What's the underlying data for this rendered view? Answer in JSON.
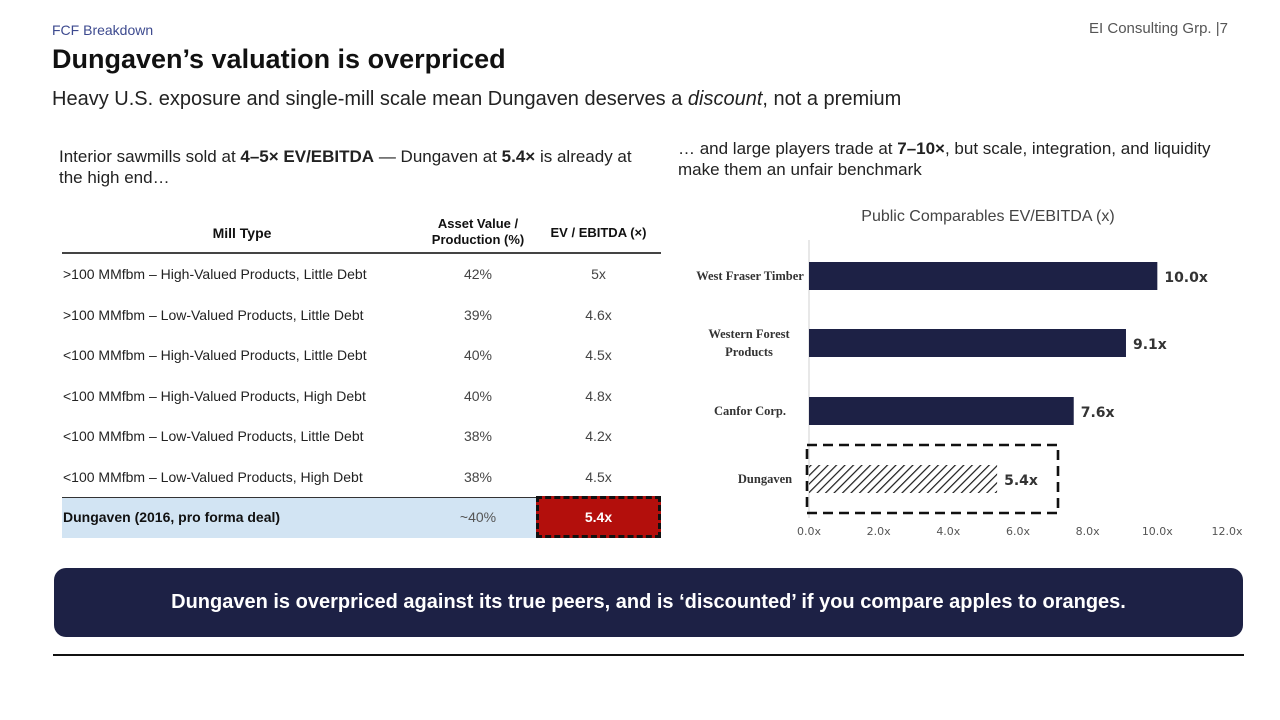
{
  "header": {
    "section": "FCF Breakdown",
    "firm": "EI Consulting Grp. |7",
    "title": "Dungaven’s valuation is overpriced",
    "subtitle_pre": "Heavy U.S. exposure and single-mill scale mean Dungaven deserves a ",
    "subtitle_em": "discount",
    "subtitle_post": ", not a premium"
  },
  "left_intro": {
    "p1": "Interior sawmills sold at ",
    "b1": "4–5× EV/EBITDA",
    "p2": " — Dungaven at ",
    "b2": "5.4×",
    "p3": " is already at the high end…"
  },
  "right_intro": {
    "p1": "… and large players trade at ",
    "b1": "7–10×",
    "p2": ", but scale, integration, and liquidity make them an unfair benchmark"
  },
  "table": {
    "headers": {
      "mill": "Mill Type",
      "asset": "Asset Value / Production (%)",
      "ev": "EV / EBITDA (×)"
    },
    "rows": [
      {
        "mill": ">100 MMfbm – High-Valued Products, Little Debt",
        "asset": "42%",
        "ev": "5x"
      },
      {
        "mill": ">100 MMfbm – Low-Valued Products, Little Debt",
        "asset": "39%",
        "ev": "4.6x"
      },
      {
        "mill": "<100 MMfbm – High-Valued Products, Little Debt",
        "asset": "40%",
        "ev": "4.5x"
      },
      {
        "mill": "<100 MMfbm – High-Valued Products, High Debt",
        "asset": "40%",
        "ev": "4.8x"
      },
      {
        "mill": "<100 MMfbm – Low-Valued Products, Little Debt",
        "asset": "38%",
        "ev": "4.2x"
      },
      {
        "mill": "<100 MMfbm – Low-Valued Products, High Debt",
        "asset": "38%",
        "ev": "4.5x"
      }
    ],
    "highlight": {
      "mill": "Dungaven (2016, pro forma deal)",
      "asset": "~40%",
      "ev": "5.4x"
    }
  },
  "chart_data": {
    "type": "bar",
    "orientation": "horizontal",
    "title": "Public Comparables EV/EBITDA (x)",
    "categories": [
      "West Fraser Timber",
      "Western Forest Products",
      "Canfor Corp.",
      "Dungaven"
    ],
    "values": [
      10.0,
      9.1,
      7.6,
      5.4
    ],
    "data_labels": [
      "10.0x",
      "9.1x",
      "7.6x",
      "5.4x"
    ],
    "x_ticks": [
      "0.0x",
      "2.0x",
      "4.0x",
      "6.0x",
      "8.0x",
      "10.0x",
      "12.0x"
    ],
    "xlim": [
      0,
      12
    ],
    "grid": false,
    "colors": {
      "bar": "#1d2145",
      "highlight_pattern": "#1a1a1a"
    },
    "highlighted_category": "Dungaven"
  },
  "callout": "Dungaven is overpriced against its true peers, and is ‘discounted’ if you compare apples to oranges.",
  "colors": {
    "navy": "#1d2145",
    "red": "#b30f0c",
    "highlight_row": "#d2e4f3",
    "section_tag": "#3d4a8f"
  }
}
